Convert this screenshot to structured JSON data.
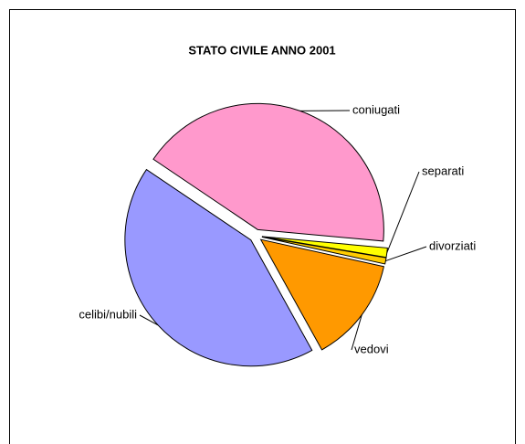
{
  "chart_data": {
    "type": "pie",
    "title": "STATO CIVILE ANNO 2001",
    "categories": [
      "coniugati",
      "separati",
      "divorziati",
      "vedovi",
      "celibi/nubili"
    ],
    "values": [
      42,
      1.2,
      0.8,
      13.5,
      42.5
    ],
    "colors": [
      "#FF99CC",
      "#FFFF00",
      "#FFCC00",
      "#FF9900",
      "#9999FF"
    ]
  }
}
